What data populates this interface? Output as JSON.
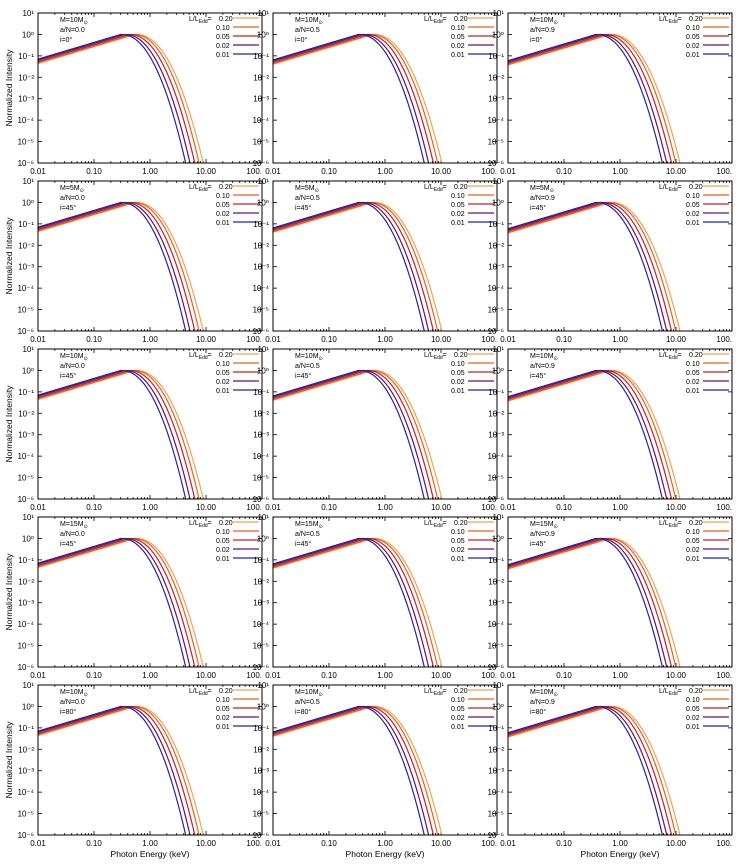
{
  "figure": {
    "ylabel": "Normalized Intensity",
    "xlabel": "Photon Energy (keV)",
    "legend_header": "L/L",
    "legend_header_sub": "Edd",
    "legend_header_suffix": "=",
    "xlim": [
      0.01,
      100
    ],
    "ylim": [
      1e-06,
      10
    ],
    "rows": [
      {
        "mass": "M=10M",
        "inc": "i=0°"
      },
      {
        "mass": "M=5M",
        "inc": "i=45°"
      },
      {
        "mass": "M=10M",
        "inc": "i=45°"
      },
      {
        "mass": "M=15M",
        "inc": "i=45°"
      },
      {
        "mass": "M=10M",
        "inc": "i=80°"
      }
    ],
    "mass_sub": "⊙",
    "spins": [
      "a/N=0.0",
      "a/N=0.5",
      "a/N=0.9"
    ],
    "series_colors": [
      "#f5a050",
      "#e8601c",
      "#c0202a",
      "#6a1060",
      "#2222aa"
    ]
  },
  "chart_data": {
    "type": "line",
    "layout": "5x3 grid of log-log spectra",
    "xscale": "log",
    "yscale": "log",
    "xlabel": "Photon Energy (keV)",
    "ylabel": "Normalized Intensity",
    "xticks": [
      "0.01",
      "0.10",
      "1.00",
      "10.00",
      "100."
    ],
    "yticks": [
      "10¹",
      "10⁰",
      "10⁻¹",
      "10⁻²",
      "10⁻³",
      "10⁻⁴",
      "10⁻⁵",
      "10⁻⁶"
    ],
    "legend_title": "L/L_Edd=",
    "series": [
      {
        "name": "0.20",
        "peak_keV": 0.55,
        "cutoff_keV": 9.5
      },
      {
        "name": "0.10",
        "peak_keV": 0.5,
        "cutoff_keV": 8.0
      },
      {
        "name": "0.05",
        "peak_keV": 0.42,
        "cutoff_keV": 6.7
      },
      {
        "name": "0.02",
        "peak_keV": 0.35,
        "cutoff_keV": 5.5
      },
      {
        "name": "0.01",
        "peak_keV": 0.3,
        "cutoff_keV": 4.6
      }
    ]
  }
}
